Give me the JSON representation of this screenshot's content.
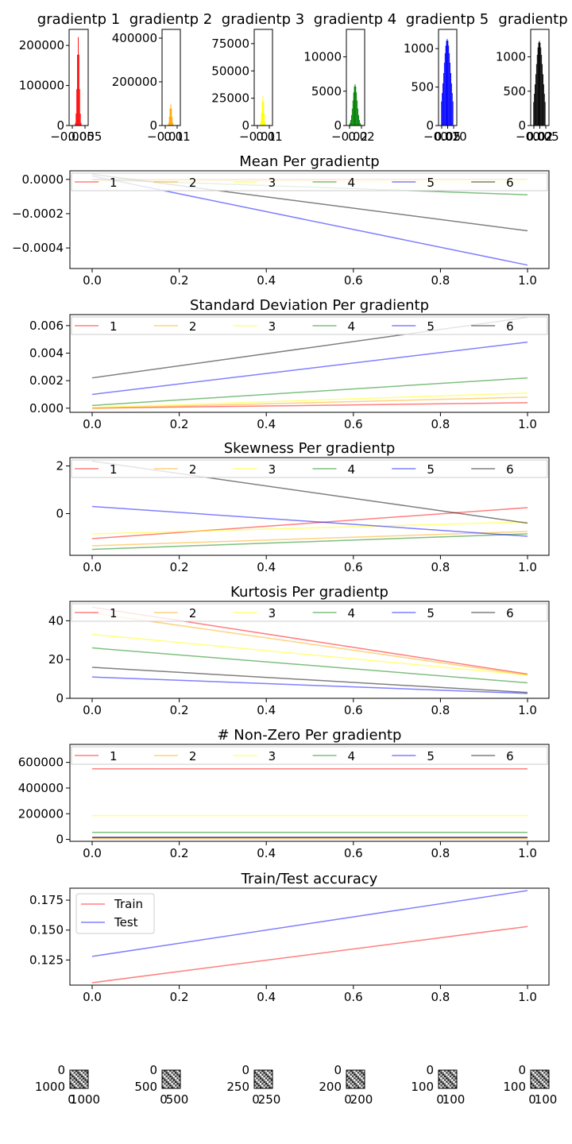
{
  "colors": {
    "red": "#ff0000",
    "orange": "#ffa500",
    "yellow": "#ffff00",
    "green": "#008000",
    "blue": "#0000ff",
    "black": "#000000",
    "gray": "#808080",
    "frame": "#000000"
  },
  "chart_data": [
    {
      "type": "bar",
      "title": "gradientp 1",
      "color": "red",
      "yticks": [
        "0",
        "100000",
        "200000"
      ],
      "xticks": [
        "−0.005",
        "0.005"
      ],
      "ylim": [
        0,
        240000
      ],
      "peak_fraction": 0.92
    },
    {
      "type": "bar",
      "title": "gradientp 2",
      "color": "orange",
      "yticks": [
        "0",
        "200000",
        "400000"
      ],
      "xticks": [
        "−0.01",
        "0.01"
      ],
      "ylim": [
        0,
        440000
      ],
      "peak_fraction": 0.22
    },
    {
      "type": "bar",
      "title": "gradientp 3",
      "color": "yellow",
      "yticks": [
        "0",
        "25000",
        "50000",
        "75000"
      ],
      "xticks": [
        "−0.01",
        "0.01"
      ],
      "ylim": [
        0,
        88000
      ],
      "peak_fraction": 0.31
    },
    {
      "type": "bar",
      "title": "gradientp 4",
      "color": "green",
      "yticks": [
        "0",
        "5000",
        "10000"
      ],
      "xticks": [
        "−0.02",
        "0.02"
      ],
      "ylim": [
        0,
        14000
      ],
      "peak_fraction": 0.43
    },
    {
      "type": "bar",
      "title": "gradientp 5",
      "color": "blue",
      "yticks": [
        "0",
        "500",
        "1000"
      ],
      "xticks": [
        "−0.02",
        "0.05",
        "0.10"
      ],
      "ylim": [
        0,
        1250
      ],
      "peak_fraction": 0.9
    },
    {
      "type": "bar",
      "title": "gradientp",
      "color": "black",
      "yticks": [
        "0",
        "500",
        "1000"
      ],
      "xticks": [
        "−0.02",
        "0.02",
        "0.05"
      ],
      "ylim": [
        0,
        1400
      ],
      "peak_fraction": 0.88
    },
    {
      "type": "line",
      "title": "Mean Per gradientp",
      "x": [
        0,
        1
      ],
      "xticks": [
        "0.0",
        "0.2",
        "0.4",
        "0.6",
        "0.8",
        "1.0"
      ],
      "yticks": [
        "0.0000",
        "−0.0002",
        "−0.0004"
      ],
      "ytick_values": [
        0,
        -0.0002,
        -0.0004
      ],
      "ylim": [
        -0.00052,
        5e-05
      ],
      "series": [
        {
          "name": "1",
          "color": "red",
          "values": [
            0.0,
            0.0
          ]
        },
        {
          "name": "2",
          "color": "orange",
          "values": [
            -1e-05,
            0.0
          ]
        },
        {
          "name": "3",
          "color": "yellow",
          "values": [
            -5e-06,
            -2e-05
          ]
        },
        {
          "name": "4",
          "color": "green",
          "values": [
            0.0,
            -9e-05
          ]
        },
        {
          "name": "5",
          "color": "blue",
          "values": [
            2e-05,
            -0.0005
          ]
        },
        {
          "name": "6",
          "color": "black",
          "values": [
            3e-05,
            -0.0003
          ]
        }
      ]
    },
    {
      "type": "line",
      "title": "Standard Deviation Per gradientp",
      "x": [
        0,
        1
      ],
      "xticks": [
        "0.0",
        "0.2",
        "0.4",
        "0.6",
        "0.8",
        "1.0"
      ],
      "yticks": [
        "0.000",
        "0.002",
        "0.004",
        "0.006"
      ],
      "ytick_values": [
        0,
        0.002,
        0.004,
        0.006
      ],
      "ylim": [
        -0.0003,
        0.0068
      ],
      "series": [
        {
          "name": "1",
          "color": "red",
          "values": [
            0.0,
            0.0004
          ]
        },
        {
          "name": "2",
          "color": "orange",
          "values": [
            0.0,
            0.0008
          ]
        },
        {
          "name": "3",
          "color": "yellow",
          "values": [
            5e-05,
            0.0011
          ]
        },
        {
          "name": "4",
          "color": "green",
          "values": [
            0.0002,
            0.0022
          ]
        },
        {
          "name": "5",
          "color": "blue",
          "values": [
            0.001,
            0.0048
          ]
        },
        {
          "name": "6",
          "color": "black",
          "values": [
            0.0022,
            0.0066
          ]
        }
      ]
    },
    {
      "type": "line",
      "title": "Skewness Per gradientp",
      "x": [
        0,
        1
      ],
      "xticks": [
        "0.0",
        "0.2",
        "0.4",
        "0.6",
        "0.8",
        "1.0"
      ],
      "yticks": [
        "0",
        "2"
      ],
      "ytick_values": [
        0,
        2
      ],
      "ylim": [
        -1.75,
        2.35
      ],
      "series": [
        {
          "name": "1",
          "color": "red",
          "values": [
            -1.05,
            0.25
          ]
        },
        {
          "name": "2",
          "color": "orange",
          "values": [
            -1.35,
            -0.75
          ]
        },
        {
          "name": "3",
          "color": "yellow",
          "values": [
            -0.85,
            -0.35
          ]
        },
        {
          "name": "4",
          "color": "green",
          "values": [
            -1.5,
            -0.85
          ]
        },
        {
          "name": "5",
          "color": "blue",
          "values": [
            0.3,
            -0.95
          ]
        },
        {
          "name": "6",
          "color": "black",
          "values": [
            2.2,
            -0.4
          ]
        }
      ]
    },
    {
      "type": "line",
      "title": "Kurtosis Per gradientp",
      "x": [
        0,
        1
      ],
      "xticks": [
        "0.0",
        "0.2",
        "0.4",
        "0.6",
        "0.8",
        "1.0"
      ],
      "yticks": [
        "0",
        "20",
        "40"
      ],
      "ytick_values": [
        0,
        20,
        40
      ],
      "ylim": [
        0,
        50
      ],
      "series": [
        {
          "name": "1",
          "color": "red",
          "values": [
            47,
            12.5
          ]
        },
        {
          "name": "2",
          "color": "orange",
          "values": [
            44,
            12
          ]
        },
        {
          "name": "3",
          "color": "yellow",
          "values": [
            33,
            12
          ]
        },
        {
          "name": "4",
          "color": "green",
          "values": [
            26,
            8
          ]
        },
        {
          "name": "5",
          "color": "blue",
          "values": [
            11,
            2.5
          ]
        },
        {
          "name": "6",
          "color": "black",
          "values": [
            16,
            3
          ]
        }
      ]
    },
    {
      "type": "line",
      "title": "# Non-Zero Per gradientp",
      "x": [
        0,
        1
      ],
      "xticks": [
        "0.0",
        "0.2",
        "0.4",
        "0.6",
        "0.8",
        "1.0"
      ],
      "yticks": [
        "0",
        "200000",
        "400000",
        "600000"
      ],
      "ytick_values": [
        0,
        200000,
        400000,
        600000
      ],
      "ylim": [
        -15000,
        740000
      ],
      "series": [
        {
          "name": "1",
          "color": "red",
          "values": [
            550000,
            550000
          ]
        },
        {
          "name": "2",
          "color": "orange",
          "values": [
            5000,
            5000
          ]
        },
        {
          "name": "3",
          "color": "yellow",
          "values": [
            185000,
            185000
          ]
        },
        {
          "name": "4",
          "color": "green",
          "values": [
            55000,
            55000
          ]
        },
        {
          "name": "5",
          "color": "blue",
          "values": [
            15000,
            15000
          ]
        },
        {
          "name": "6",
          "color": "black",
          "values": [
            15000,
            15000
          ]
        }
      ]
    },
    {
      "type": "line",
      "title": "Train/Test accuracy",
      "x": [
        0,
        1
      ],
      "xticks": [
        "0.0",
        "0.2",
        "0.4",
        "0.6",
        "0.8",
        "1.0"
      ],
      "yticks": [
        "0.125",
        "0.150",
        "0.175"
      ],
      "ytick_values": [
        0.125,
        0.15,
        0.175
      ],
      "ylim": [
        0.104,
        0.185
      ],
      "series": [
        {
          "name": "Train",
          "color": "red",
          "values": [
            0.106,
            0.153
          ]
        },
        {
          "name": "Test",
          "color": "blue",
          "values": [
            0.128,
            0.183
          ]
        }
      ]
    },
    {
      "type": "heatmap",
      "title": "",
      "ytick_top": "0",
      "ytick_bottom": "1000",
      "xticks": [
        "0",
        "1000"
      ]
    },
    {
      "type": "heatmap",
      "title": "",
      "ytick_top": "0",
      "ytick_bottom": "500",
      "xticks": [
        "0",
        "500"
      ]
    },
    {
      "type": "heatmap",
      "title": "",
      "ytick_top": "0",
      "ytick_bottom": "250",
      "xticks": [
        "0",
        "250"
      ]
    },
    {
      "type": "heatmap",
      "title": "",
      "ytick_top": "0",
      "ytick_bottom": "200",
      "xticks": [
        "0",
        "200"
      ]
    },
    {
      "type": "heatmap",
      "title": "",
      "ytick_top": "0",
      "ytick_bottom": "100",
      "xticks": [
        "0",
        "100"
      ]
    },
    {
      "type": "heatmap",
      "title": "",
      "ytick_top": "0",
      "ytick_bottom": "100",
      "xticks": [
        "0",
        "100"
      ]
    }
  ]
}
